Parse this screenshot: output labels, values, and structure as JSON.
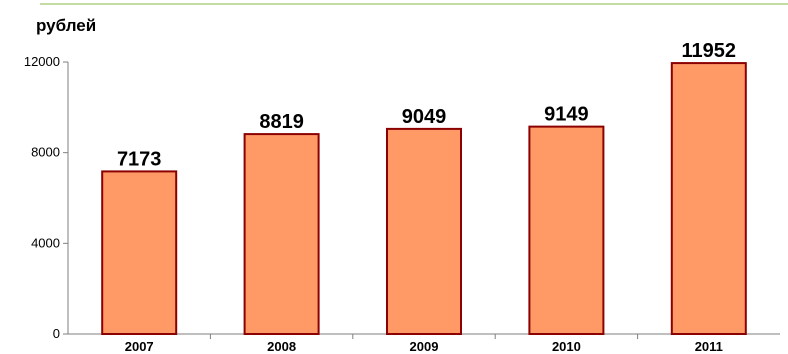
{
  "colors": {
    "bar_fill": "#ff9966",
    "bar_stroke": "#8b0000",
    "axis": "#7f7f7f",
    "top_rule": "#c4dca4"
  },
  "chart_data": {
    "type": "bar",
    "unit_label": "рублей",
    "categories": [
      "2007",
      "2008",
      "2009",
      "2010",
      "2011"
    ],
    "values": [
      7173,
      8819,
      9049,
      9149,
      11952
    ],
    "data_labels": [
      "7173",
      "8819",
      "9049",
      "9149",
      "11952"
    ],
    "ylim": [
      0,
      12000
    ],
    "yticks": [
      0,
      4000,
      8000,
      12000
    ],
    "ytick_labels": [
      "0",
      "4000",
      "8000",
      "12000"
    ],
    "grid": false,
    "legend": "none"
  }
}
